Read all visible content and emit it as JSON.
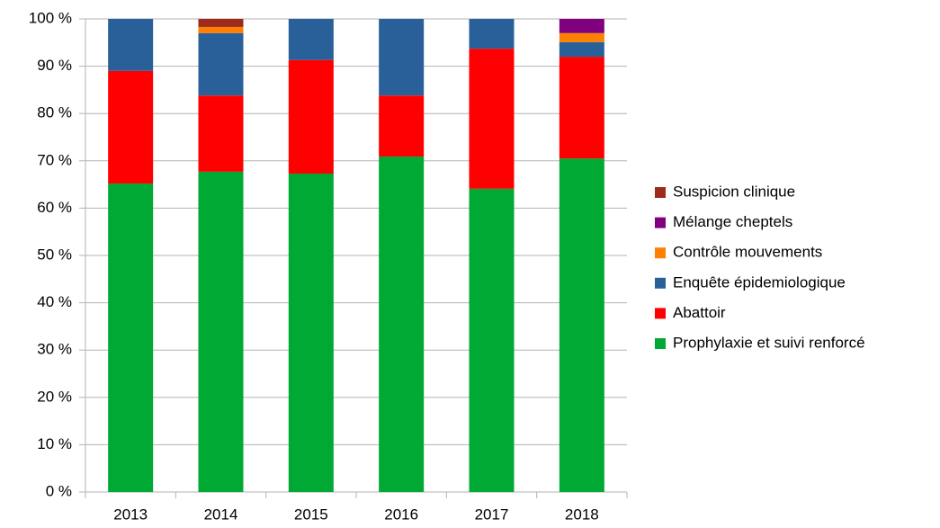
{
  "chart_data": {
    "type": "stacked_bar",
    "categories": [
      "2013",
      "2014",
      "2015",
      "2016",
      "2017",
      "2018"
    ],
    "series": [
      {
        "name": "Prophylaxie et suivi renforcé",
        "color": "#00a933",
        "values": [
          65.2,
          67.7,
          67.3,
          70.9,
          64.1,
          70.5
        ]
      },
      {
        "name": "Abattoir",
        "color": "#ff0000",
        "values": [
          23.8,
          16.1,
          24.0,
          12.9,
          29.6,
          21.5
        ]
      },
      {
        "name": "Enquête épidemiologique",
        "color": "#2a6099",
        "values": [
          11.0,
          13.2,
          8.7,
          16.2,
          6.3,
          3.1
        ]
      },
      {
        "name": "Contrôle mouvements",
        "color": "#ff8000",
        "values": [
          0,
          1.3,
          0,
          0,
          0,
          1.9
        ]
      },
      {
        "name": "Mélange cheptels",
        "color": "#800080",
        "values": [
          0,
          0,
          0,
          0,
          0,
          3.0
        ]
      },
      {
        "name": "Suspicion clinique",
        "color": "#9e2a1e",
        "values": [
          0,
          1.7,
          0,
          0,
          0,
          0
        ]
      }
    ],
    "ylim": [
      0,
      100
    ],
    "yticks": [
      {
        "value": 0,
        "label": "0 %"
      },
      {
        "value": 10,
        "label": "10 %"
      },
      {
        "value": 20,
        "label": "20 %"
      },
      {
        "value": 30,
        "label": "30 %"
      },
      {
        "value": 40,
        "label": "40 %"
      },
      {
        "value": 50,
        "label": "50 %"
      },
      {
        "value": 60,
        "label": "60 %"
      },
      {
        "value": 70,
        "label": "70 %"
      },
      {
        "value": 80,
        "label": "80 %"
      },
      {
        "value": 90,
        "label": "90 %"
      },
      {
        "value": 100,
        "label": "100 %"
      }
    ],
    "grid": true,
    "legend": "right"
  }
}
